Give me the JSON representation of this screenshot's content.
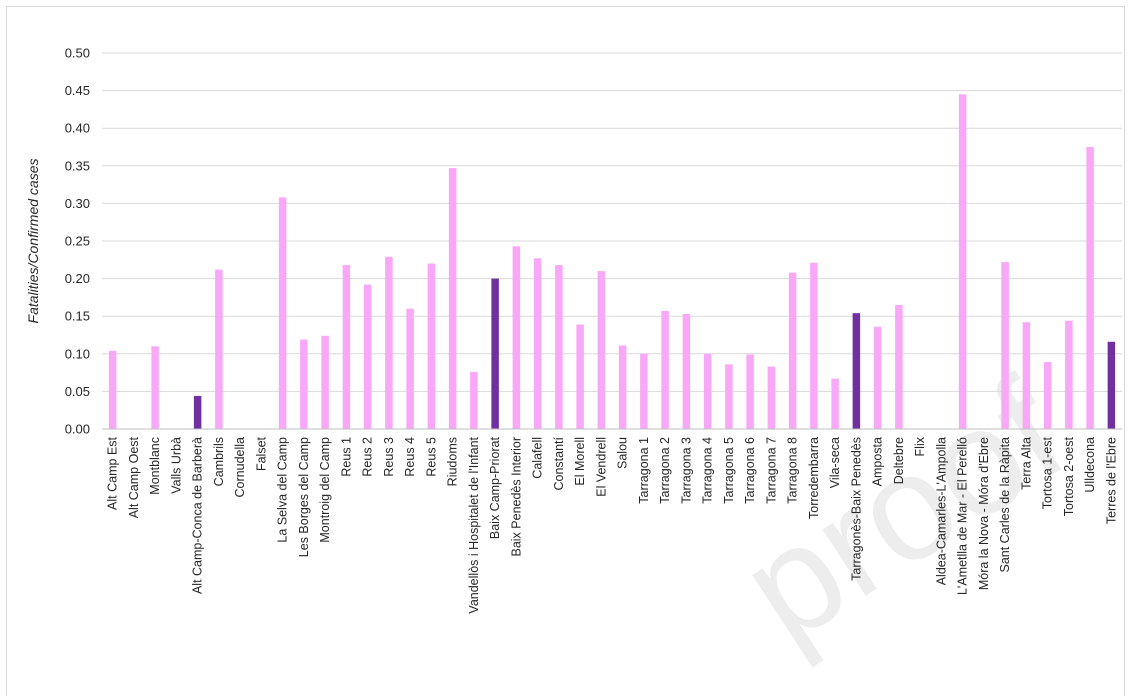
{
  "chart_data": {
    "type": "bar",
    "title": "",
    "xlabel": "",
    "ylabel": "Fatalities/Confirmed  cases",
    "ylim": [
      0,
      0.5
    ],
    "yticks": [
      "0.00",
      "0.05",
      "0.10",
      "0.15",
      "0.20",
      "0.25",
      "0.30",
      "0.35",
      "0.40",
      "0.45",
      "0.50"
    ],
    "grid": true,
    "legend": "none",
    "watermark": "proof",
    "colors": {
      "area": "#f9a8f7",
      "region": "#7030a0",
      "grid": "#d9d9d9",
      "axis": "#bfbfbf",
      "watermark": "#ededed"
    },
    "categories": [
      "Alt Camp Est",
      "Alt Camp Oest",
      "Montblanc",
      "Valls Urbà",
      "Alt Camp-Conca de Barberà",
      "Cambrils",
      "Cornudella",
      "Falset",
      "La Selva del Camp",
      "Les Borges del Camp",
      "Montroig del Camp",
      "Reus 1",
      "Reus 2",
      "Reus 3",
      "Reus 4",
      "Reus 5",
      "Riudoms",
      "Vandellòs i Hospitalet de l'Infant",
      "Baix Camp-Priorat",
      "Baix Penedès Interior",
      "Calafell",
      "Constantí",
      "El Morell",
      "El Vendrell",
      "Salou",
      "Tarragona 1",
      "Tarragona 2",
      "Tarragona 3",
      "Tarragona 4",
      "Tarragona 5",
      "Tarragona 6",
      "Tarragona 7",
      "Tarragona 8",
      "Torredembarra",
      "Vila-seca",
      "Tarragonès-Baix Penedès",
      "Amposta",
      "Deltebre",
      "Flix",
      "Aldea-Camarles-L'Ampolla",
      "L'Ametlla de Mar - El Perelló",
      "Móra la Nova - Móra d'Ebre",
      "Sant Carles de la Ràpita",
      "Terra Alta",
      "Tortosa 1-est",
      "Tortosa 2-oest",
      "Ulldecona",
      "Terres de l'Ebre"
    ],
    "values": [
      0.104,
      0,
      0.11,
      0,
      0.044,
      0.212,
      0,
      0,
      0.308,
      0.119,
      0.124,
      0.218,
      0.192,
      0.229,
      0.16,
      0.22,
      0.347,
      0.076,
      0.2,
      0.243,
      0.227,
      0.218,
      0.139,
      0.21,
      0.111,
      0.1,
      0.157,
      0.153,
      0.1,
      0.086,
      0.099,
      0.083,
      0.208,
      0.221,
      0.067,
      0.154,
      0.136,
      0.165,
      0,
      0,
      0.445,
      0,
      0.222,
      0.142,
      0.089,
      0.144,
      0.375,
      0.116
    ],
    "highlighted": [
      "Alt Camp-Conca de Barberà",
      "Baix Camp-Priorat",
      "Tarragonès-Baix Penedès",
      "Terres de l'Ebre"
    ]
  }
}
